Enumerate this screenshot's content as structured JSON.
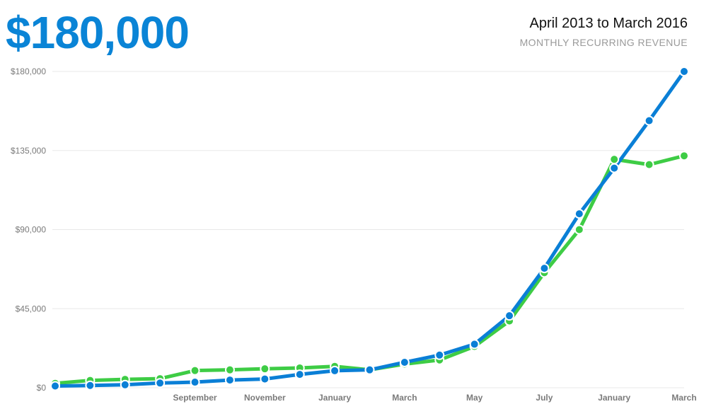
{
  "headline": "$180,000",
  "period": "April 2013 to March 2016",
  "subtitle": "MONTHLY RECURRING REVENUE",
  "colors": {
    "accent": "#0a84d6",
    "series_blue": "#0a7fd6",
    "series_green": "#3ecc45",
    "grid": "#e8e8e8"
  },
  "chart_data": {
    "type": "line",
    "ylim": [
      0,
      180000
    ],
    "yticks": [
      0,
      45000,
      90000,
      135000,
      180000
    ],
    "ytick_labels": [
      "$0",
      "$45,000",
      "$90,000",
      "$135,000",
      "$180,000"
    ],
    "xtick_labels": [
      {
        "label": "September",
        "index": 4
      },
      {
        "label": "November",
        "index": 6
      },
      {
        "label": "January",
        "index": 8
      },
      {
        "label": "March",
        "index": 10
      },
      {
        "label": "May",
        "index": 12
      },
      {
        "label": "July",
        "index": 14
      },
      {
        "label": "January",
        "index": 16
      },
      {
        "label": "March",
        "index": 18
      }
    ],
    "grid": true,
    "series": [
      {
        "color": "#3ecc45",
        "values": [
          2500,
          4200,
          4800,
          5200,
          9800,
          10200,
          10800,
          11300,
          12200,
          10200,
          13500,
          15800,
          23500,
          38000,
          65500,
          90000,
          130000,
          127000,
          132000
        ]
      },
      {
        "color": "#0a7fd6",
        "values": [
          1000,
          1300,
          1700,
          2700,
          3200,
          4400,
          5000,
          7600,
          9700,
          10200,
          14500,
          18600,
          24800,
          41000,
          68000,
          99000,
          125000,
          152000,
          180000
        ]
      }
    ]
  }
}
